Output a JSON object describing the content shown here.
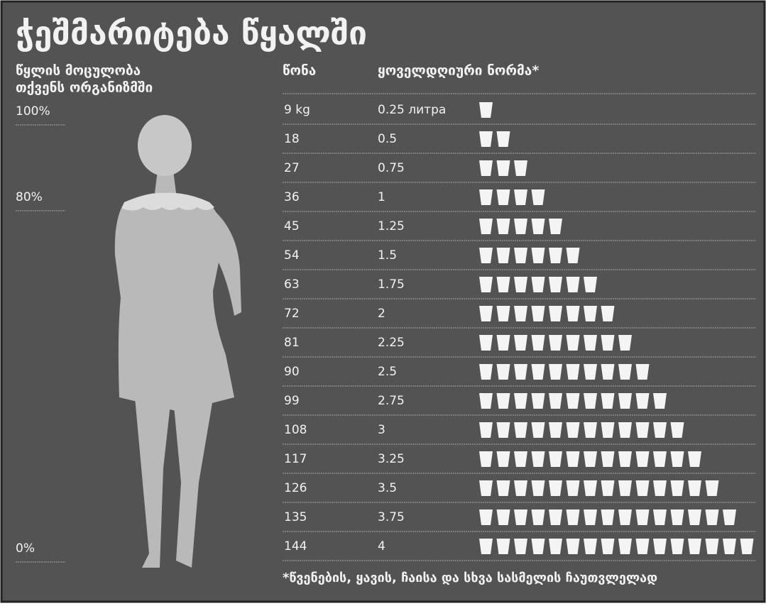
{
  "title": "ჭეშმარიტება წყალში",
  "left_header": [
    "წყლის მოცულობა",
    "თქვენს ორგანიზმში"
  ],
  "percent_labels": [
    "100%",
    "80%",
    "0%"
  ],
  "columns": [
    "წონა",
    "ყოველდღიური ნორმა*"
  ],
  "rows": [
    [
      "9 kg",
      "0.25 литра"
    ],
    [
      "18",
      "0.5"
    ],
    [
      "27",
      "0.75"
    ],
    [
      "36",
      "1"
    ],
    [
      "45",
      "1.25"
    ],
    [
      "54",
      "1.5"
    ],
    [
      "63",
      "1.75"
    ],
    [
      "72",
      "2"
    ],
    [
      "81",
      "2.25"
    ],
    [
      "90",
      "2.5"
    ],
    [
      "99",
      "2.75"
    ],
    [
      "108",
      "3"
    ],
    [
      "117",
      "3.25"
    ],
    [
      "126",
      "3.5"
    ],
    [
      "135",
      "3.75"
    ],
    [
      "144",
      "4"
    ]
  ],
  "footnote": "*წვენების, ყავის, ჩაისა და სხვა სასმელის ჩაუთვლელად"
}
